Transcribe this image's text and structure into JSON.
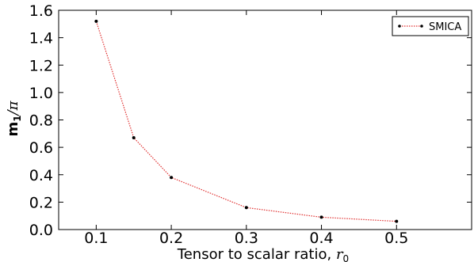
{
  "chart_data": {
    "type": "line",
    "x": [
      0.1,
      0.15,
      0.2,
      0.3,
      0.4,
      0.5
    ],
    "series": [
      {
        "name": "SMICA",
        "values": [
          1.52,
          0.67,
          0.38,
          0.16,
          0.09,
          0.06
        ],
        "line_color": "#e03030",
        "line_style": "dotted",
        "marker_color": "#000000"
      }
    ],
    "xlabel_text": "Tensor to scalar ratio, ",
    "xlabel_symbol": "r",
    "xlabel_subscript": "0",
    "ylabel_main": "m",
    "ylabel_subscript": "1",
    "ylabel_rest": "/π",
    "xlim": [
      0.05,
      0.6
    ],
    "ylim": [
      0.0,
      1.6
    ],
    "x_ticks": [
      0.1,
      0.2,
      0.3,
      0.4,
      0.5
    ],
    "x_tick_labels": [
      "0.1",
      "0.2",
      "0.3",
      "0.4",
      "0.5"
    ],
    "y_ticks": [
      0.0,
      0.2,
      0.4,
      0.6,
      0.8,
      1.0,
      1.2,
      1.4,
      1.6
    ],
    "y_tick_labels": [
      "0.0",
      "0.2",
      "0.4",
      "0.6",
      "0.8",
      "1.0",
      "1.2",
      "1.4",
      "1.6"
    ],
    "grid": false,
    "legend_position": "top-right"
  }
}
